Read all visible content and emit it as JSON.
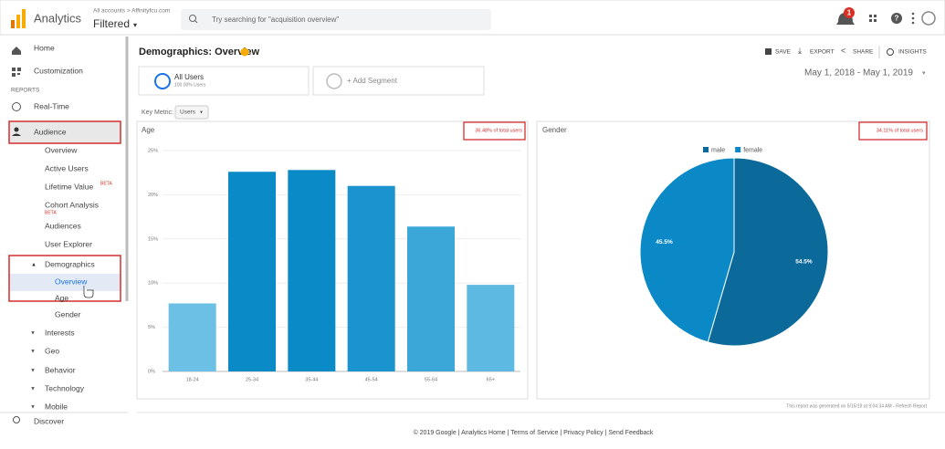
{
  "header": {
    "product": "Analytics",
    "breadcrumb": "All accounts > Affinityfcu.com",
    "view": "Filtered",
    "search_placeholder": "Try searching for \"acquisition overview\"",
    "notification_count": 1
  },
  "sidebar": {
    "home": "Home",
    "customization": "Customization",
    "section": "REPORTS",
    "realtime": "Real-Time",
    "audience": "Audience",
    "audience_items": [
      {
        "label": "Overview"
      },
      {
        "label": "Active Users"
      },
      {
        "label": "Lifetime Value",
        "badge": "BETA"
      },
      {
        "label": "Cohort Analysis",
        "badge": "BETA"
      },
      {
        "label": "Audiences"
      },
      {
        "label": "User Explorer"
      }
    ],
    "demographics": "Demographics",
    "demographics_items": [
      "Overview",
      "Age",
      "Gender"
    ],
    "groups": [
      "Interests",
      "Geo",
      "Behavior",
      "Technology",
      "Mobile"
    ],
    "discover": "Discover"
  },
  "report": {
    "title": "Demographics: Overview",
    "actions": [
      "SAVE",
      "EXPORT",
      "SHARE",
      "INSIGHTS"
    ],
    "segment": {
      "name": "All Users",
      "detail": "100.00% Users"
    },
    "add_segment": "+ Add Segment",
    "date_range": "May 1, 2018 - May 1, 2019",
    "key_metric_label": "Key Metric:",
    "key_metric": "Users",
    "generated_note": "This report was generated on 5/15/19 at 9:04:34 AM - Refresh Report"
  },
  "footer": "© 2019 Google | Analytics Home | Terms of Service | Privacy Policy | Send Feedback",
  "chart_data": [
    {
      "type": "bar",
      "title": "Age",
      "subtitle": "36.48% of total users",
      "categories": [
        "18-24",
        "25-34",
        "35-44",
        "45-54",
        "55-64",
        "65+"
      ],
      "values": [
        7.7,
        22.6,
        22.8,
        21.0,
        16.4,
        9.8
      ],
      "colors": [
        "#6cc0e5",
        "#0a8ac6",
        "#0a8ac6",
        "#1b93cf",
        "#3ba6d8",
        "#5db9e2"
      ],
      "ylim": [
        0,
        25
      ],
      "yticks": [
        {
          "value": 0,
          "label": "0%"
        },
        {
          "value": 5,
          "label": "5%"
        },
        {
          "value": 10,
          "label": "10%"
        },
        {
          "value": 15,
          "label": "15%"
        },
        {
          "value": 20,
          "label": "20%"
        },
        {
          "value": 25,
          "label": "25%"
        }
      ],
      "grid": true
    },
    {
      "type": "pie",
      "title": "Gender",
      "subtitle": "34.11% of total users",
      "categories": [
        "male",
        "female"
      ],
      "values": [
        54.5,
        45.5
      ],
      "value_labels": [
        "54.5%",
        "45.5%"
      ],
      "colors": [
        "#0b6a9a",
        "#0a89c6"
      ],
      "legend": "top"
    }
  ]
}
